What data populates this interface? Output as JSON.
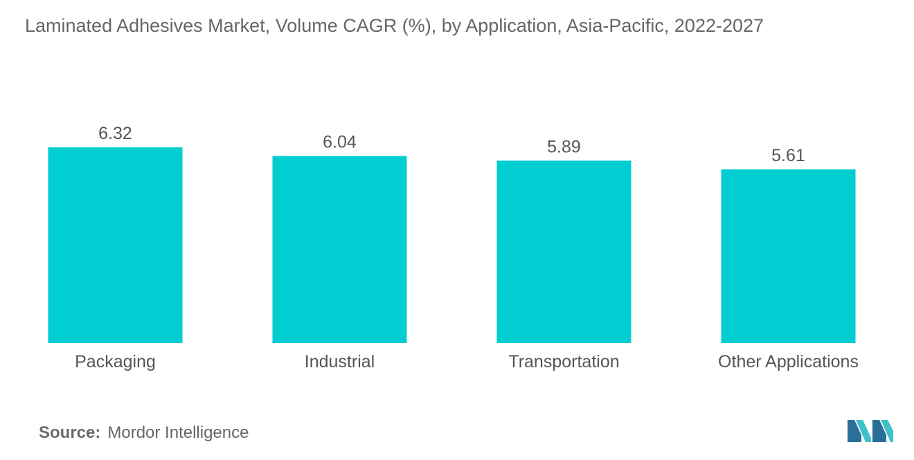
{
  "title": "Laminated Adhesives Market, Volume CAGR (%), by Application, Asia-Pacific, 2022-2027",
  "source": {
    "label": "Source:",
    "text": "Mordor Intelligence"
  },
  "colors": {
    "bar": "#00CED1",
    "text": "#555555",
    "title": "#666666",
    "logo_dark": "#2a6f97",
    "logo_light": "#3fc1c9"
  },
  "logo_icon": "mordor-intelligence-logo",
  "chart_data": {
    "type": "bar",
    "title": "Laminated Adhesives Market, Volume CAGR (%), by Application, Asia-Pacific, 2022-2027",
    "categories": [
      "Packaging",
      "Industrial",
      "Transportation",
      "Other Applications"
    ],
    "values": [
      6.32,
      6.04,
      5.89,
      5.61
    ],
    "value_labels": [
      "6.32",
      "6.04",
      "5.89",
      "5.61"
    ],
    "xlabel": "",
    "ylabel": "",
    "ylim": [
      0,
      6.32
    ],
    "grid": false,
    "legend": "none"
  }
}
